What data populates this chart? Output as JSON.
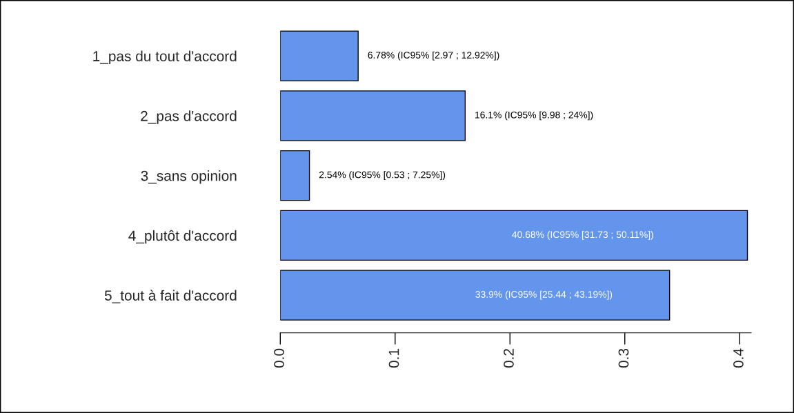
{
  "chart_data": {
    "type": "bar",
    "orientation": "horizontal",
    "categories": [
      "1_pas du tout d'accord",
      "2_pas d'accord",
      "3_sans opinion",
      "4_plutôt d'accord",
      "5_tout à fait d'accord"
    ],
    "values": [
      0.0678,
      0.161,
      0.0254,
      0.4068,
      0.339
    ],
    "value_labels": [
      "6.78% (IC95% [2.97 ; 12.92%])",
      "16.1% (IC95% [9.98 ; 24%])",
      "2.54% (IC95% [0.53 ; 7.25%])",
      "40.68% (IC95% [31.73 ; 50.11%])",
      "33.9% (IC95% [25.44 ; 43.19%])"
    ],
    "color": "#6495ed",
    "xlim": [
      0,
      0.41
    ],
    "xticks": [
      {
        "value": 0,
        "label": "0.0"
      },
      0.1,
      0.2,
      0.3,
      0.4
    ],
    "grid": false,
    "legend": false
  }
}
